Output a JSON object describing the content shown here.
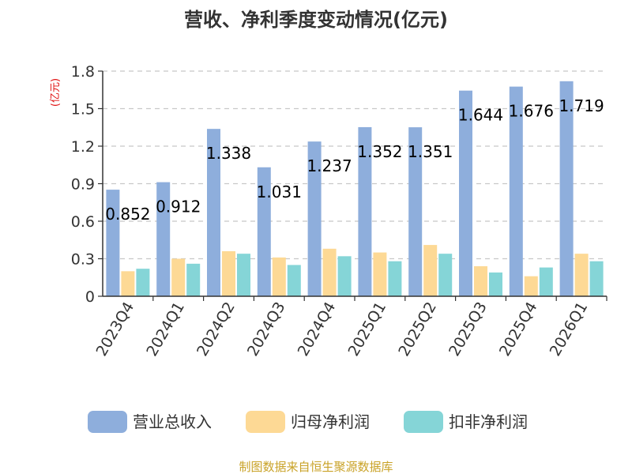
{
  "chart_data": {
    "type": "bar",
    "title": "营收、净利季度变动情况(亿元)",
    "ylabel": "(亿元)",
    "xlabel": "",
    "categories": [
      "2023Q4",
      "2024Q1",
      "2024Q2",
      "2024Q3",
      "2024Q4",
      "2025Q1",
      "2025Q2",
      "2025Q3",
      "2025Q4",
      "2026Q1"
    ],
    "series": [
      {
        "name": "营业总收入",
        "color": "#8eaedc",
        "values": [
          0.852,
          0.912,
          1.338,
          1.031,
          1.237,
          1.352,
          1.351,
          1.644,
          1.676,
          1.719
        ],
        "labels": [
          "0.852",
          "0.912",
          "1.338",
          "1.031",
          "1.237",
          "1.352",
          "1.351",
          "1.644",
          "1.676",
          "1.719"
        ]
      },
      {
        "name": "归母净利润",
        "color": "#fdd995",
        "values": [
          0.2,
          0.3,
          0.36,
          0.31,
          0.38,
          0.35,
          0.41,
          0.24,
          0.16,
          0.34
        ]
      },
      {
        "name": "扣非净利润",
        "color": "#85d5d7",
        "values": [
          0.22,
          0.26,
          0.34,
          0.25,
          0.32,
          0.28,
          0.34,
          0.19,
          0.23,
          0.28
        ]
      }
    ],
    "ylim": [
      0,
      1.8
    ],
    "yticks": [
      "0",
      "0.3",
      "0.6",
      "0.9",
      "1.2",
      "1.5",
      "1.8"
    ],
    "grid": true,
    "legend": "bottom"
  },
  "source": "制图数据来自恒生聚源数据库"
}
